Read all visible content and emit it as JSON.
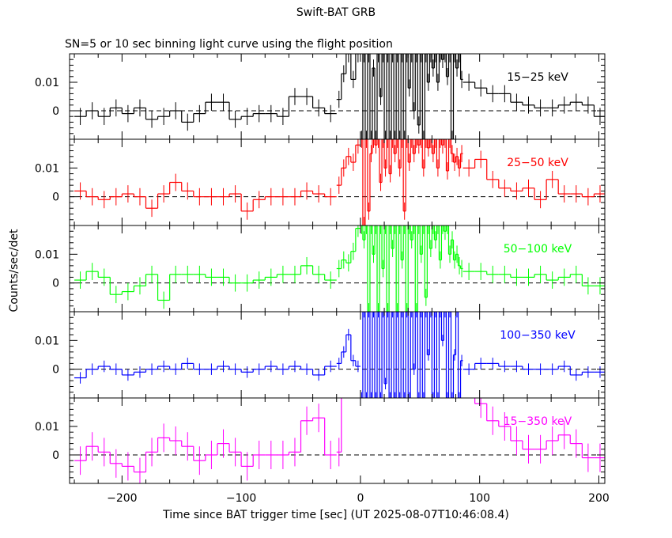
{
  "chart_data": {
    "type": "line",
    "title": "Swift-BAT GRB",
    "subtitle": "SN=5 or 10 sec binning light curve using the flight position",
    "xlabel": "Time since BAT trigger time [sec] (UT 2025-08-07T10:46:08.4)",
    "ylabel": "Counts/sec/det",
    "xlim": [
      -244,
      205
    ],
    "ylim": [
      -0.01,
      0.02
    ],
    "x_ticks": [
      -200,
      -100,
      0,
      100,
      200
    ],
    "x_tick_labels": [
      "−200",
      "−100",
      "0",
      "100",
      "200"
    ],
    "y_ticks": [
      0,
      0.01
    ],
    "y_tick_labels": [
      "0",
      "0.01"
    ],
    "zero_line": "dashed",
    "grid": false,
    "panels": [
      {
        "name": "15−25 keV",
        "color": "#000000",
        "err": 0.003,
        "segments": [
          {
            "t0": -240,
            "dt": 10,
            "rate": [
              -0.002,
              0,
              -0.002,
              0.001,
              -0.001,
              0.001,
              -0.003,
              -0.002,
              0,
              -0.004,
              -0.001,
              0.003,
              0.003,
              -0.003,
              -0.002,
              -0.001,
              -0.001,
              -0.002,
              0.005,
              0.005,
              0.001,
              -0.001
            ]
          },
          {
            "t0": -20,
            "dt": 4,
            "rate": [
              0.004,
              0.013,
              0.02,
              0.011,
              0.02
            ]
          },
          {
            "t0": 0,
            "dt": 2,
            "rate": [
              -0.01,
              0.02,
              -0.01,
              0.02,
              -0.01,
              0.015,
              -0.01,
              0.02,
              0.005,
              0.02,
              -0.01,
              0.02,
              -0.01,
              0.02,
              -0.01,
              0.02,
              -0.01,
              0.02,
              -0.01,
              0.02,
              0.008,
              0.02,
              0.0,
              0.02,
              -0.005,
              0.02,
              -0.01,
              0.02,
              0.01,
              0.02,
              0.015,
              0.02,
              0.01,
              0.02,
              0.018,
              0.02,
              0.012,
              0.02,
              -0.01,
              0.02,
              0.015,
              0.02,
              0.011
            ]
          },
          {
            "t0": 86,
            "dt": 10,
            "rate": [
              0.01,
              0.008,
              0.006,
              0.006,
              0.003,
              0.002,
              0.001,
              0.001,
              0.002,
              0.003,
              0.002,
              -0.002
            ]
          }
        ]
      },
      {
        "name": "25−50 keV",
        "color": "#ff0000",
        "err": 0.003,
        "segments": [
          {
            "t0": -240,
            "dt": 10,
            "rate": [
              0.002,
              0,
              -0.001,
              0,
              0.001,
              0,
              -0.004,
              0.001,
              0.005,
              0.002,
              0,
              0,
              0,
              0.001,
              -0.005,
              -0.001,
              0,
              0,
              0,
              0.002,
              0.001,
              0
            ]
          },
          {
            "t0": -20,
            "dt": 4,
            "rate": [
              0.004,
              0.01,
              0.014,
              0.012,
              0.018
            ]
          },
          {
            "t0": 0,
            "dt": 2,
            "rate": [
              0.02,
              -0.01,
              0.02,
              -0.005,
              0.015,
              0.02,
              0.018,
              0.02,
              0.005,
              0.02,
              0.01,
              0.02,
              0.008,
              0.02,
              0.015,
              0.02,
              0.01,
              0.02,
              -0.005,
              0.02,
              0.012,
              0.02,
              0.015,
              0.02,
              0.018,
              0.02,
              0.01,
              0.02,
              0.017,
              0.02,
              0.015,
              0.02,
              0.01,
              0.02,
              0.018,
              0.02,
              0.009,
              0.02,
              0.015,
              0.012,
              0.014,
              0.01,
              0.015
            ]
          },
          {
            "t0": 86,
            "dt": 10,
            "rate": [
              0.01,
              0.013,
              0.006,
              0.003,
              0.002,
              0.003,
              -0.001,
              0.006,
              0.001,
              0.001,
              0,
              0.001
            ]
          }
        ]
      },
      {
        "name": "50−100 keV",
        "color": "#00ff00",
        "err": 0.003,
        "segments": [
          {
            "t0": -240,
            "dt": 10,
            "rate": [
              0.001,
              0.004,
              0.002,
              -0.004,
              -0.003,
              -0.001,
              0.003,
              -0.006,
              0.003,
              0.003,
              0.003,
              0.002,
              0.002,
              0,
              0,
              0.001,
              0.002,
              0.003,
              0.003,
              0.006,
              0.003,
              0.001
            ]
          },
          {
            "t0": -20,
            "dt": 4,
            "rate": [
              0.005,
              0.008,
              0.007,
              0.011,
              0.019
            ]
          },
          {
            "t0": 0,
            "dt": 2,
            "rate": [
              0.02,
              0.015,
              0.02,
              -0.01,
              0.02,
              0.01,
              0.02,
              -0.01,
              0.02,
              0.005,
              0.02,
              -0.01,
              0.02,
              0.012,
              0.02,
              -0.01,
              0.02,
              0.008,
              0.02,
              -0.01,
              0.02,
              0.015,
              0.02,
              -0.01,
              0.02,
              0.01,
              0.02,
              -0.005,
              0.02,
              0.012,
              0.02,
              0.015,
              0.02,
              0.008,
              0.02,
              0.018,
              0.02,
              0.01,
              0.015,
              0.008,
              0.01,
              0.006,
              0.005
            ]
          },
          {
            "t0": 86,
            "dt": 10,
            "rate": [
              0.004,
              0.004,
              0.003,
              0.003,
              0.002,
              0.002,
              0.003,
              0.001,
              0.002,
              0.003,
              -0.001,
              -0.001
            ]
          }
        ]
      },
      {
        "name": "100−350 keV",
        "color": "#0000ff",
        "err": 0.002,
        "segments": [
          {
            "t0": -240,
            "dt": 10,
            "rate": [
              -0.003,
              0,
              0.001,
              0,
              -0.002,
              -0.001,
              0,
              0.001,
              0,
              0.002,
              0,
              0,
              0.001,
              0,
              -0.001,
              0,
              0.001,
              0,
              0.001,
              0,
              -0.002,
              0.001
            ]
          },
          {
            "t0": -20,
            "dt": 4,
            "rate": [
              0.002,
              0.006,
              0.012,
              0.003,
              0.001
            ]
          },
          {
            "t0": 0,
            "dt": 2,
            "rate": [
              -0.01,
              0.02,
              -0.01,
              0.02,
              -0.01,
              0.02,
              -0.01,
              0.02,
              -0.01,
              0.02,
              -0.005,
              0.02,
              -0.01,
              0.02,
              -0.01,
              0.02,
              -0.01,
              0.02,
              -0.01,
              0.02,
              -0.01,
              0.02,
              0.0,
              0.02,
              -0.01,
              0.02,
              -0.01,
              0.02,
              0.005,
              0.02,
              -0.01,
              0.02,
              -0.01,
              0.02,
              0.01,
              0.02,
              -0.01,
              0.02,
              -0.01,
              0.005,
              0.02,
              -0.01,
              0.003
            ]
          },
          {
            "t0": 86,
            "dt": 10,
            "rate": [
              0.0,
              0.002,
              0.002,
              0.001,
              0.001,
              0,
              0,
              0,
              0.001,
              -0.002,
              -0.001,
              -0.001
            ]
          }
        ]
      },
      {
        "name": "15−350 keV",
        "color": "#ff00ff",
        "err": 0.005,
        "segments": [
          {
            "t0": -240,
            "dt": 10,
            "rate": [
              -0.002,
              0.003,
              0.001,
              -0.003,
              -0.004,
              -0.006,
              0.001,
              0.006,
              0.005,
              0.003,
              -0.002,
              0,
              0.004,
              0.001,
              -0.004,
              0,
              0,
              0,
              0.001,
              0.012,
              0.013,
              0
            ]
          },
          {
            "t0": -20,
            "dt": 4,
            "rate": [
              0.001,
              0.025
            ]
          },
          {
            "t0": 86,
            "dt": 10,
            "rate": [
              0.025,
              0.018,
              0.012,
              0.01,
              0.005,
              0.002,
              0.002,
              0.005,
              0.007,
              0.004,
              -0.001,
              -0.001
            ]
          }
        ]
      }
    ]
  }
}
